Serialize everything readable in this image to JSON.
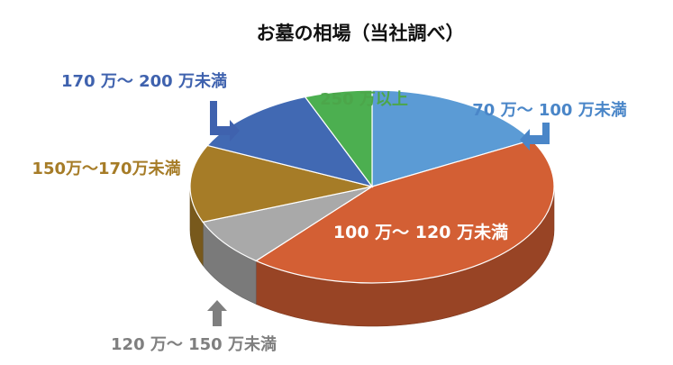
{
  "chart_data": {
    "type": "pie",
    "title": "お墓の相場（当社調べ）",
    "slices": [
      {
        "label": "70 万～ 100 万未満",
        "value": 17,
        "color": "#5B9BD5",
        "label_color": "#4A86C8"
      },
      {
        "label": "100 万～ 120 万未満",
        "value": 44,
        "color": "#D35F34",
        "label_color": "#FFFFFF"
      },
      {
        "label": "120 万～ 150 万未満",
        "value": 8,
        "color": "#A9A9A9",
        "label_color": "#7F7F7F"
      },
      {
        "label": "150万～170万未満",
        "value": 13,
        "color": "#A67C27",
        "label_color": "#A67C27"
      },
      {
        "label": "170 万～ 200 万未満",
        "value": 12,
        "color": "#4169B3",
        "label_color": "#3F62AE"
      },
      {
        "label": "250 万以上",
        "value": 6,
        "color": "#4CAF50",
        "label_color": "#4CA64A"
      }
    ],
    "legend": "none",
    "three_d": true
  }
}
